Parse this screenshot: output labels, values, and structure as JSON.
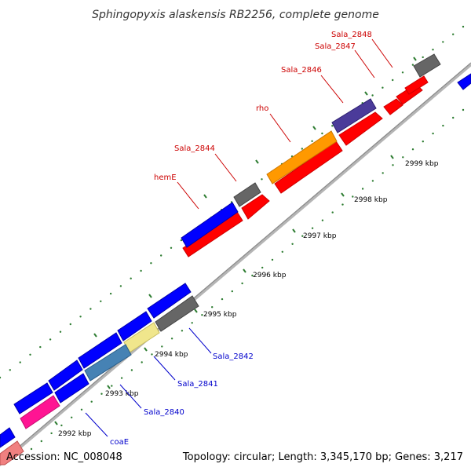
{
  "title": "Sphingopyxis alaskensis RB2256, complete genome",
  "footer": {
    "accession": "Accession: NC_008048",
    "summary": "Topology: circular; Length: 3,345,170 bp; Genes: 3,217"
  },
  "colors": {
    "backbone": "#999999",
    "forward_label": "#cc0000",
    "reverse_label": "#0000cc",
    "tick": "#2e7d32"
  },
  "tick_labels": [
    "2992 kbp",
    "2993 kbp",
    "2994 kbp",
    "2995 kbp",
    "2996 kbp",
    "2997 kbp",
    "2998 kbp",
    "2999 kbp"
  ],
  "gene_labels": {
    "forward": [
      "hemE",
      "Sala_2844",
      "rho",
      "Sala_2846",
      "Sala_2847",
      "Sala_2848"
    ],
    "reverse": [
      "coaE",
      "Sala_2840",
      "Sala_2841",
      "Sala_2842"
    ]
  }
}
